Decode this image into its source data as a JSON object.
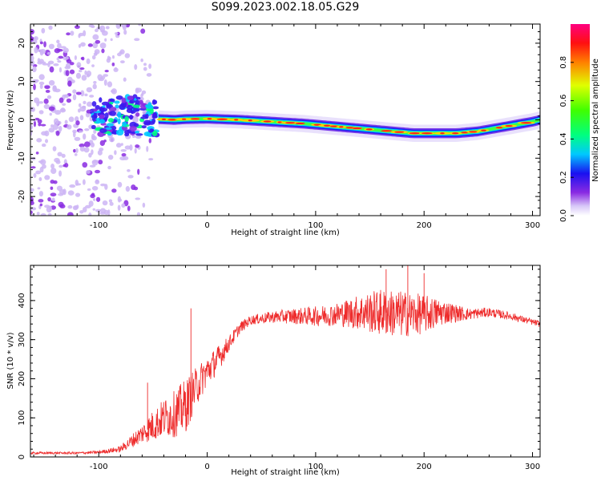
{
  "title": "S099.2023.002.18.05.G29",
  "chart_data": [
    {
      "type": "heatmap",
      "xlabel": "Height of straight line (km)",
      "ylabel": "Frequency (Hz)",
      "xlim": [
        -163,
        307
      ],
      "ylim": [
        -25,
        25
      ],
      "xticks": [
        -100,
        0,
        100,
        200,
        300
      ],
      "yticks": [
        -20,
        -10,
        0,
        10,
        20
      ],
      "ridge": {
        "x": [
          -45,
          -30,
          -20,
          0,
          30,
          60,
          90,
          110,
          130,
          150,
          170,
          190,
          210,
          230,
          250,
          260,
          280,
          300,
          307
        ],
        "y": [
          0.2,
          0,
          0.2,
          0.3,
          0,
          -0.5,
          -1,
          -1.5,
          -2,
          -2.5,
          -3,
          -3.5,
          -3.5,
          -3.5,
          -3,
          -2.5,
          -1.5,
          -0.5,
          0
        ]
      },
      "noise_region": {
        "x": [
          -163,
          -50
        ],
        "y": [
          -25,
          25
        ]
      },
      "colorbar": {
        "label": "Normalized spectral amplitude",
        "ticks": [
          "0.0",
          "0.2",
          "0.4",
          "0.6",
          "0.8"
        ],
        "range": [
          0,
          1
        ]
      }
    },
    {
      "type": "line",
      "xlabel": "Height of straight line (km)",
      "ylabel": "SNR (10 * v/v)",
      "xlim": [
        -163,
        307
      ],
      "ylim": [
        0,
        490
      ],
      "xticks": [
        -100,
        0,
        100,
        200,
        300
      ],
      "yticks": [
        0,
        100,
        200,
        300,
        400
      ],
      "series": [
        {
          "color": "#ee2c2c",
          "envelope_x": [
            -163,
            -120,
            -100,
            -80,
            -60,
            -50,
            -40,
            -30,
            -20,
            -10,
            0,
            10,
            20,
            30,
            40,
            60,
            80,
            100,
            120,
            140,
            160,
            180,
            200,
            220,
            240,
            260,
            280,
            300,
            307
          ],
          "envelope_y": [
            10,
            10,
            12,
            20,
            60,
            80,
            100,
            110,
            130,
            180,
            220,
            250,
            290,
            330,
            350,
            358,
            360,
            360,
            365,
            370,
            370,
            365,
            365,
            370,
            365,
            370,
            360,
            345,
            340
          ],
          "noise_amplitude": [
            3,
            3,
            4,
            8,
            25,
            40,
            50,
            60,
            70,
            50,
            40,
            35,
            20,
            15,
            12,
            15,
            20,
            25,
            30,
            45,
            60,
            60,
            50,
            30,
            15,
            12,
            10,
            8,
            8
          ],
          "spikes": [
            {
              "x": -55,
              "y": 190
            },
            {
              "x": -15,
              "y": 380
            },
            {
              "x": 185,
              "y": 490
            },
            {
              "x": 165,
              "y": 480
            },
            {
              "x": 200,
              "y": 470
            }
          ]
        }
      ]
    }
  ]
}
